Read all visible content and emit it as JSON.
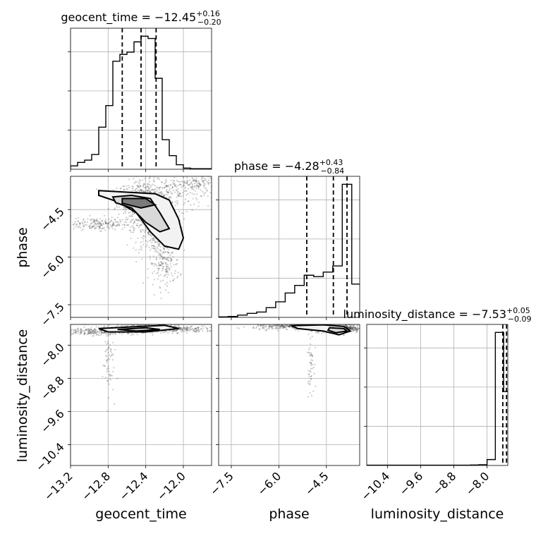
{
  "chart_data": {
    "type": "corner",
    "parameters": [
      "geocent_time",
      "phase",
      "luminosity_distance"
    ],
    "titles": [
      {
        "name": "geocent_time",
        "median": "−12.45",
        "plus": "+0.16",
        "minus": "−0.20"
      },
      {
        "name": "phase",
        "median": "−4.28",
        "plus": "+0.43",
        "minus": "−0.84"
      },
      {
        "name": "luminosity_distance",
        "median": "−7.53",
        "plus": "+0.05",
        "minus": "−0.09"
      }
    ],
    "axis_labels": [
      "geocent_time",
      "phase",
      "luminosity_distance"
    ],
    "ranges": [
      [
        -13.2,
        -11.7
      ],
      [
        -7.9,
        -3.45
      ],
      [
        -10.9,
        -7.5
      ]
    ],
    "ticks": [
      {
        "values": [
          -13.2,
          -12.8,
          -12.4,
          -12.0
        ],
        "labels": [
          "−13.2",
          "−12.8",
          "−12.4",
          "−12.0"
        ]
      },
      {
        "values": [
          -7.5,
          -6.0,
          -4.5
        ],
        "labels": [
          "−7.5",
          "−6.0",
          "−4.5"
        ]
      },
      {
        "values": [
          -10.4,
          -9.6,
          -8.8,
          -8.0
        ],
        "labels": [
          "−10.4",
          "−9.6",
          "−8.8",
          "−8.0"
        ]
      }
    ],
    "quantiles": [
      [
        -12.65,
        -12.45,
        -12.29
      ],
      [
        -5.12,
        -4.28,
        -3.85
      ],
      [
        -7.62,
        -7.53,
        -7.48
      ]
    ],
    "histograms": [
      {
        "edges": [
          -13.2,
          -13.125,
          -13.05,
          -12.975,
          -12.9,
          -12.825,
          -12.75,
          -12.675,
          -12.6,
          -12.525,
          -12.45,
          -12.375,
          -12.3,
          -12.225,
          -12.15,
          -12.075,
          -12.0,
          -11.925,
          -11.85,
          -11.775,
          -11.7
        ],
        "counts": [
          3,
          6,
          8,
          13,
          37,
          56,
          95,
          101,
          103,
          112,
          117,
          115,
          80,
          26,
          12,
          4,
          1,
          0.5,
          0.5,
          0.5
        ]
      },
      {
        "edges": [
          -7.9,
          -7.6,
          -7.3,
          -7.0,
          -6.7,
          -6.4,
          -6.1,
          -5.8,
          -5.5,
          -5.2,
          -4.9,
          -4.6,
          -4.3,
          -4.0,
          -3.7,
          -3.45
        ],
        "counts": [
          1,
          2,
          5,
          9,
          12,
          22,
          35,
          55,
          72,
          95,
          92,
          102,
          116,
          300,
          75
        ]
      },
      {
        "edges": [
          -11.0,
          -10.8,
          -10.6,
          -10.4,
          -10.2,
          -10.0,
          -9.8,
          -9.6,
          -9.4,
          -9.2,
          -9.0,
          -8.8,
          -8.6,
          -8.4,
          -8.2,
          -8.0,
          -7.8,
          -7.6,
          -7.4
        ],
        "counts": [
          0.2,
          0.2,
          0.2,
          0.2,
          0.2,
          0.2,
          0.2,
          0.2,
          0.2,
          0.2,
          0.2,
          0.2,
          0.2,
          0.3,
          0.5,
          4,
          90,
          50
        ]
      }
    ],
    "scatter_clusters": {
      "p1_p0": [
        {
          "cx": -12.4,
          "cy": -4.2,
          "sx": 0.15,
          "sy": 0.3,
          "n": 600
        },
        {
          "cx": -12.3,
          "cy": -5.2,
          "sx": 0.12,
          "sy": 0.35,
          "n": 300
        },
        {
          "cx": -12.2,
          "cy": -6.2,
          "sx": 0.08,
          "sy": 0.35,
          "n": 180
        },
        {
          "cx": -12.0,
          "cy": -3.9,
          "sx": 0.18,
          "sy": 0.3,
          "n": 160
        },
        {
          "cx": -11.85,
          "cy": -3.7,
          "sx": 0.1,
          "sy": 0.15,
          "n": 80
        },
        {
          "cx": -12.9,
          "cy": -4.95,
          "sx": 0.2,
          "sy": 0.1,
          "n": 200
        }
      ],
      "p2_p0": [
        {
          "cx": -12.4,
          "cy": -7.6,
          "sx": 0.25,
          "sy": 0.06,
          "n": 450
        },
        {
          "cx": -13.0,
          "cy": -7.68,
          "sx": 0.2,
          "sy": 0.04,
          "n": 200
        },
        {
          "cx": -12.8,
          "cy": -8.4,
          "sx": 0.03,
          "sy": 0.4,
          "n": 60
        },
        {
          "cx": -12.0,
          "cy": -7.62,
          "sx": 0.2,
          "sy": 0.04,
          "n": 90
        }
      ],
      "p2_p1": [
        {
          "cx": -4.2,
          "cy": -7.6,
          "sx": 0.4,
          "sy": 0.05,
          "n": 400
        },
        {
          "cx": -5.6,
          "cy": -7.55,
          "sx": 0.6,
          "sy": 0.04,
          "n": 280
        },
        {
          "cx": -5.0,
          "cy": -8.3,
          "sx": 0.05,
          "sy": 0.4,
          "n": 60
        },
        {
          "cx": -3.9,
          "cy": -7.58,
          "sx": 0.2,
          "sy": 0.03,
          "n": 80
        }
      ]
    },
    "contours": {
      "p1_p0": [
        [
          [
            -12.9,
            -3.9
          ],
          [
            -12.6,
            -3.95
          ],
          [
            -12.3,
            -4.0
          ],
          [
            -12.15,
            -4.2
          ],
          [
            -12.05,
            -4.8
          ],
          [
            -12.0,
            -5.4
          ],
          [
            -12.05,
            -5.75
          ],
          [
            -12.2,
            -5.65
          ],
          [
            -12.35,
            -5.2
          ],
          [
            -12.5,
            -4.6
          ],
          [
            -12.7,
            -4.25
          ],
          [
            -12.9,
            -4.05
          ]
        ],
        [
          [
            -12.75,
            -4.1
          ],
          [
            -12.55,
            -4.05
          ],
          [
            -12.35,
            -4.15
          ],
          [
            -12.25,
            -4.6
          ],
          [
            -12.15,
            -5.1
          ],
          [
            -12.25,
            -5.2
          ],
          [
            -12.4,
            -4.9
          ],
          [
            -12.55,
            -4.45
          ],
          [
            -12.72,
            -4.28
          ]
        ],
        [
          [
            -12.65,
            -4.15
          ],
          [
            -12.4,
            -4.15
          ],
          [
            -12.3,
            -4.35
          ],
          [
            -12.45,
            -4.45
          ],
          [
            -12.65,
            -4.3
          ]
        ]
      ],
      "p2_p1": [
        [
          [
            -5.6,
            -7.53
          ],
          [
            -4.6,
            -7.51
          ],
          [
            -3.95,
            -7.55
          ],
          [
            -3.75,
            -7.66
          ],
          [
            -4.1,
            -7.75
          ],
          [
            -4.6,
            -7.66
          ],
          [
            -5.4,
            -7.6
          ]
        ],
        [
          [
            -4.4,
            -7.58
          ],
          [
            -3.95,
            -7.6
          ],
          [
            -3.85,
            -7.66
          ],
          [
            -4.2,
            -7.7
          ],
          [
            -4.45,
            -7.64
          ]
        ]
      ],
      "p2_p0": [
        [
          [
            -12.9,
            -7.6
          ],
          [
            -12.55,
            -7.56
          ],
          [
            -12.2,
            -7.52
          ],
          [
            -12.05,
            -7.6
          ],
          [
            -12.4,
            -7.68
          ],
          [
            -12.8,
            -7.68
          ]
        ],
        [
          [
            -12.7,
            -7.62
          ],
          [
            -12.4,
            -7.58
          ],
          [
            -12.25,
            -7.62
          ],
          [
            -12.5,
            -7.66
          ]
        ]
      ]
    },
    "grid": true
  }
}
